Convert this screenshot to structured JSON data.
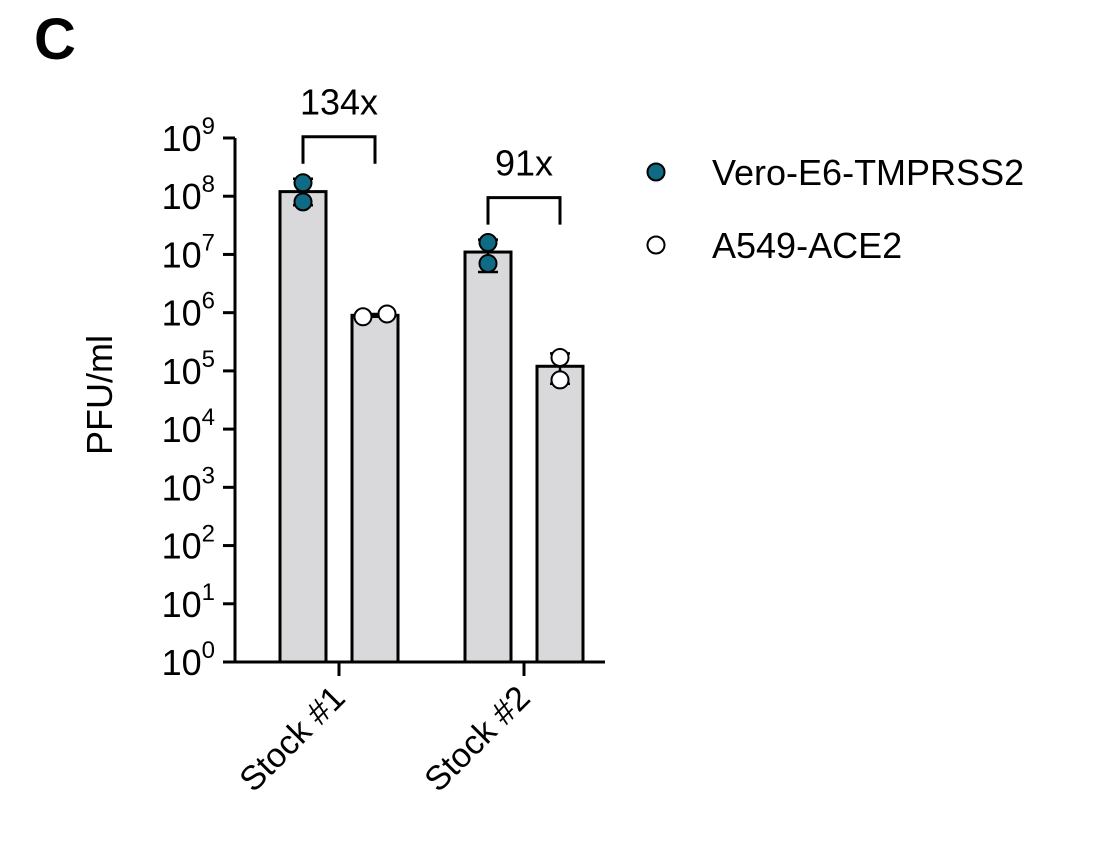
{
  "panel_label": "C",
  "chart_data": {
    "type": "bar",
    "title": "",
    "xlabel": "",
    "ylabel": "PFU/ml",
    "yscale": "log",
    "ylim": [
      1,
      1000000000
    ],
    "y_tick_labels": [
      {
        "base": "10",
        "exp": "0"
      },
      {
        "base": "10",
        "exp": "1"
      },
      {
        "base": "10",
        "exp": "2"
      },
      {
        "base": "10",
        "exp": "3"
      },
      {
        "base": "10",
        "exp": "4"
      },
      {
        "base": "10",
        "exp": "5"
      },
      {
        "base": "10",
        "exp": "6"
      },
      {
        "base": "10",
        "exp": "7"
      },
      {
        "base": "10",
        "exp": "8"
      },
      {
        "base": "10",
        "exp": "9"
      }
    ],
    "categories": [
      "Stock #1",
      "Stock #2"
    ],
    "legend_position": "right",
    "bar_color": "#d9d9db",
    "series": [
      {
        "name": "Vero-E6-TMPRSS2",
        "marker_color": "#0e6a85",
        "values": [
          120000000,
          11000000
        ],
        "error_low": [
          70000000,
          5000000
        ],
        "error_high": [
          200000000,
          18000000
        ],
        "points": [
          [
            170000000,
            80000000
          ],
          [
            16000000,
            7000000
          ]
        ]
      },
      {
        "name": "A549-ACE2",
        "marker_color": "#ffffff",
        "values": [
          900000,
          120000
        ],
        "error_low": [
          850000,
          60000
        ],
        "error_high": [
          950000,
          200000
        ],
        "points": [
          [
            850000,
            950000
          ],
          [
            170000,
            70000
          ]
        ]
      }
    ],
    "annotations": [
      {
        "category": "Stock #1",
        "text": "134x"
      },
      {
        "category": "Stock #2",
        "text": "91x"
      }
    ]
  }
}
